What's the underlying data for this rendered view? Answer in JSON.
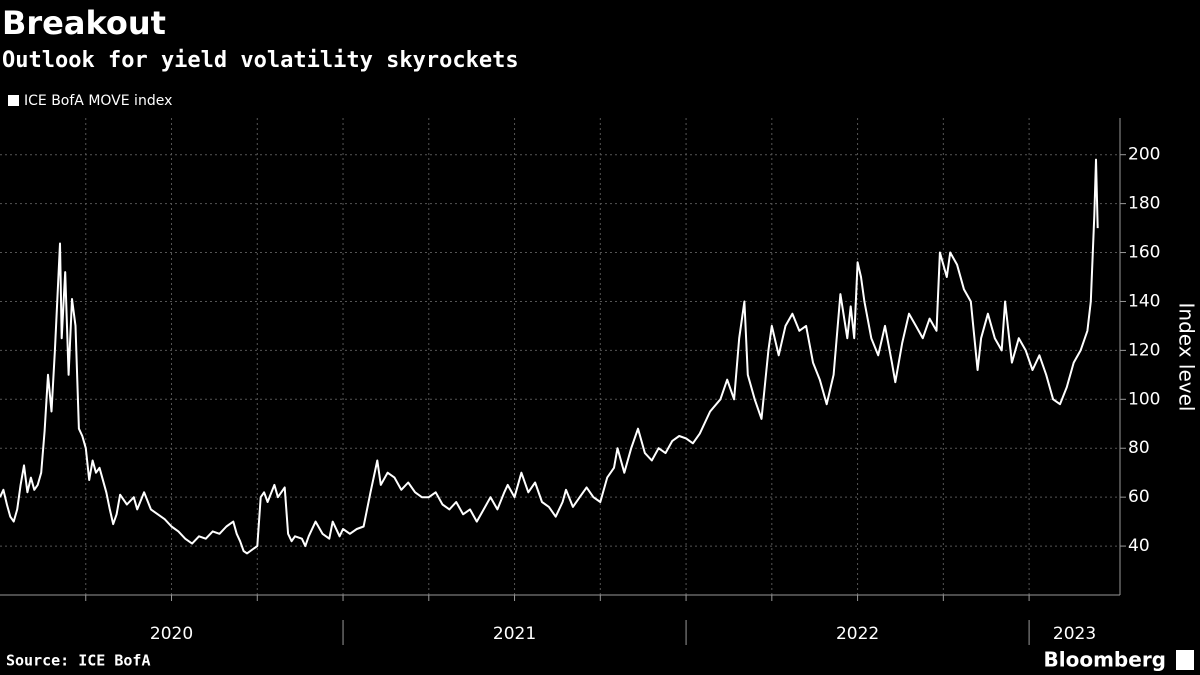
{
  "chart_data": {
    "type": "line",
    "title": "Breakout",
    "subtitle": "Outlook for yield volatility skyrockets",
    "y_label": "Index level",
    "source": "Source: ICE BofA",
    "brand": "Bloomberg",
    "x": [
      2020.0,
      2020.01,
      2020.02,
      2020.03,
      2020.04,
      2020.05,
      2020.06,
      2020.07,
      2020.08,
      2020.09,
      2020.1,
      2020.11,
      2020.12,
      2020.13,
      2020.14,
      2020.15,
      2020.16,
      2020.175,
      2020.18,
      2020.19,
      2020.2,
      2020.21,
      2020.22,
      2020.23,
      2020.24,
      2020.25,
      2020.26,
      2020.27,
      2020.28,
      2020.29,
      2020.31,
      2020.32,
      2020.33,
      2020.34,
      2020.35,
      2020.37,
      2020.39,
      2020.4,
      2020.42,
      2020.44,
      2020.46,
      2020.48,
      2020.5,
      2020.52,
      2020.54,
      2020.56,
      2020.58,
      2020.6,
      2020.62,
      2020.64,
      2020.66,
      2020.68,
      2020.69,
      2020.7,
      2020.71,
      2020.72,
      2020.74,
      2020.75,
      2020.76,
      2020.77,
      2020.78,
      2020.8,
      2020.81,
      2020.82,
      2020.83,
      2020.84,
      2020.85,
      2020.86,
      2020.88,
      2020.89,
      2020.9,
      2020.92,
      2020.94,
      2020.96,
      2020.97,
      2020.99,
      2021.0,
      2021.02,
      2021.04,
      2021.06,
      2021.08,
      2021.1,
      2021.11,
      2021.13,
      2021.15,
      2021.17,
      2021.19,
      2021.21,
      2021.23,
      2021.25,
      2021.27,
      2021.29,
      2021.31,
      2021.33,
      2021.35,
      2021.37,
      2021.39,
      2021.41,
      2021.43,
      2021.45,
      2021.47,
      2021.48,
      2021.5,
      2021.52,
      2021.54,
      2021.56,
      2021.58,
      2021.6,
      2021.62,
      2021.64,
      2021.65,
      2021.67,
      2021.69,
      2021.71,
      2021.73,
      2021.75,
      2021.77,
      2021.79,
      2021.8,
      2021.82,
      2021.84,
      2021.86,
      2021.88,
      2021.9,
      2021.92,
      2021.94,
      2021.96,
      2021.98,
      2022.0,
      2022.02,
      2022.04,
      2022.07,
      2022.1,
      2022.12,
      2022.14,
      2022.155,
      2022.17,
      2022.18,
      2022.2,
      2022.22,
      2022.24,
      2022.25,
      2022.27,
      2022.29,
      2022.31,
      2022.33,
      2022.35,
      2022.37,
      2022.39,
      2022.41,
      2022.43,
      2022.45,
      2022.47,
      2022.48,
      2022.49,
      2022.5,
      2022.51,
      2022.52,
      2022.54,
      2022.56,
      2022.58,
      2022.6,
      2022.61,
      2022.63,
      2022.65,
      2022.67,
      2022.69,
      2022.71,
      2022.73,
      2022.74,
      2022.76,
      2022.77,
      2022.79,
      2022.81,
      2022.83,
      2022.85,
      2022.86,
      2022.88,
      2022.9,
      2022.92,
      2022.93,
      2022.95,
      2022.97,
      2022.99,
      2023.01,
      2023.03,
      2023.05,
      2023.07,
      2023.09,
      2023.11,
      2023.13,
      2023.15,
      2023.17,
      2023.18,
      2023.19,
      2023.195,
      2023.2
    ],
    "series": [
      {
        "name": "ICE BofA MOVE index",
        "color": "#ffffff",
        "values": [
          60,
          63,
          57,
          52,
          50,
          55,
          65,
          73,
          62,
          68,
          63,
          65,
          70,
          87,
          110,
          95,
          120,
          163.7,
          125,
          152,
          110,
          141,
          130,
          88,
          85,
          80,
          67,
          75,
          70,
          72,
          62,
          55,
          49,
          53,
          61,
          57,
          60,
          55,
          62,
          55,
          53,
          51,
          48,
          46,
          43,
          41,
          44,
          43,
          46,
          45,
          48,
          50,
          45,
          42,
          38,
          37,
          39,
          40,
          60,
          62,
          58,
          65,
          60,
          62,
          64,
          45,
          42,
          44,
          43,
          40,
          44,
          50,
          45,
          43,
          50,
          44,
          47,
          45,
          47,
          48,
          62,
          75,
          65,
          70,
          68,
          63,
          66,
          62,
          60,
          60,
          62,
          57,
          55,
          58,
          53,
          55,
          50,
          55,
          60,
          55,
          62,
          65,
          60,
          70,
          62,
          66,
          58,
          56,
          52,
          58,
          63,
          56,
          60,
          64,
          60,
          58,
          68,
          72,
          80,
          70,
          80,
          88,
          78,
          75,
          80,
          78,
          83,
          85,
          84,
          82,
          86,
          95,
          100,
          108,
          100,
          125,
          140,
          110,
          100,
          92,
          120,
          130,
          118,
          130,
          135,
          128,
          130,
          115,
          108,
          98,
          110,
          143,
          125,
          138,
          125,
          156,
          150,
          140,
          125,
          118,
          130,
          115,
          107,
          123,
          135,
          130,
          125,
          133,
          128,
          160,
          150,
          160,
          155,
          145,
          140,
          112,
          125,
          135,
          125,
          120,
          140,
          115,
          125,
          120,
          112,
          118,
          110,
          100,
          98,
          105,
          115,
          120,
          128,
          140,
          175,
          198,
          170
        ]
      }
    ],
    "xlim": [
      2020,
      2023.265
    ],
    "xticks": [
      2020,
      2021,
      2022,
      2023
    ],
    "xgrid": [
      2020.25,
      2020.5,
      2020.75,
      2021,
      2021.25,
      2021.5,
      2021.75,
      2022,
      2022.25,
      2022.5,
      2022.75,
      2023
    ],
    "ylim": [
      20,
      215
    ],
    "yticks": [
      40,
      60,
      80,
      100,
      120,
      140,
      160,
      180,
      200
    ],
    "grid": true
  }
}
